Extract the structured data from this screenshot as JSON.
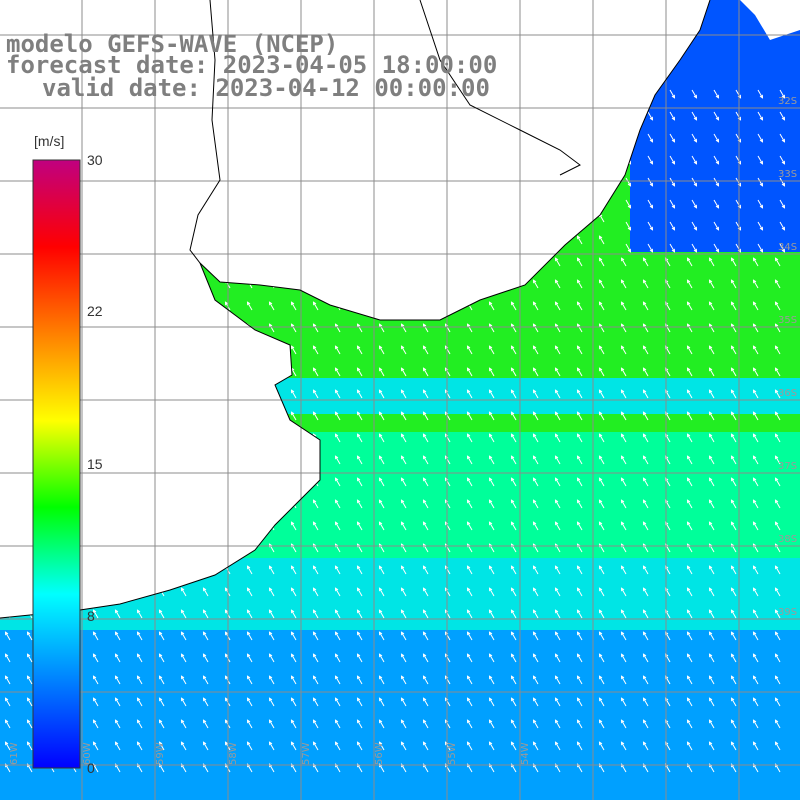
{
  "title": {
    "model": "modelo GEFS-WAVE (NCEP)",
    "forecast": "forecast date: 2023-04-05 18:00:00",
    "valid": "valid date: 2023-04-12 00:00:00"
  },
  "colorbar": {
    "unit": "[m/s]",
    "ticks": [
      "30",
      "22",
      "15",
      "8",
      "0"
    ],
    "min": 0,
    "max": 30,
    "colors": [
      "#0000ff",
      "#0080ff",
      "#00ffff",
      "#00ff00",
      "#ffff00",
      "#ff8000",
      "#ff0000",
      "#c00080"
    ]
  },
  "map": {
    "lat_labels": [
      "32S",
      "33S",
      "34S",
      "35S",
      "36S",
      "37S",
      "38S",
      "39S"
    ],
    "lon_labels": [
      "61W",
      "60W",
      "59W",
      "58W",
      "57W",
      "56W",
      "55W",
      "54W"
    ],
    "land_color": "#ffffff",
    "grid_color": "#8c8c8c",
    "coast_color": "#000000",
    "arrow_color": "#ffffff",
    "speed_colors": {
      "weak": "#0055ff",
      "low": "#00a0ff",
      "mid": "#00e5e5",
      "moderate": "#00ff9a",
      "strong": "#22ee22"
    }
  }
}
